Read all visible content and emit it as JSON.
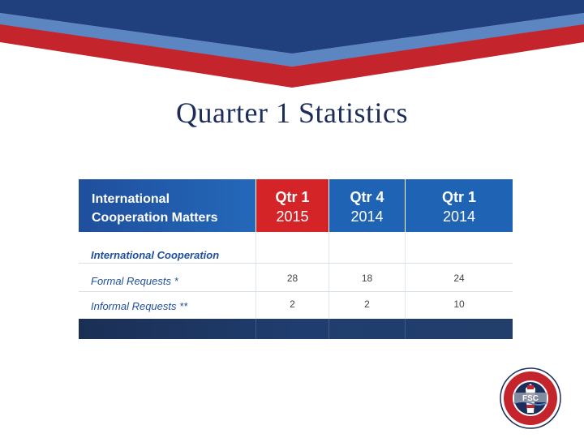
{
  "slide": {
    "title": "Quarter 1 Statistics"
  },
  "table": {
    "header_title_line1": "International",
    "header_title_line2": "Cooperation Matters",
    "columns": [
      {
        "line1": "Qtr 1",
        "line2": "2015",
        "color": "#d52428"
      },
      {
        "line1": "Qtr 4",
        "line2": "2014",
        "color": "#1e63b4"
      },
      {
        "line1": "Qtr 1",
        "line2": "2014",
        "color": "#1e63b4"
      }
    ],
    "section_label": "International Cooperation",
    "rows": [
      {
        "label": "Formal Requests *",
        "values": [
          "28",
          "18",
          "24"
        ]
      },
      {
        "label": "Informal Requests **",
        "values": [
          "2",
          "2",
          "10"
        ]
      }
    ]
  },
  "colors": {
    "navy": "#1c2d5a",
    "red": "#c4242b",
    "blue": "#1e63b4",
    "light_blue": "#5b86c2"
  }
}
